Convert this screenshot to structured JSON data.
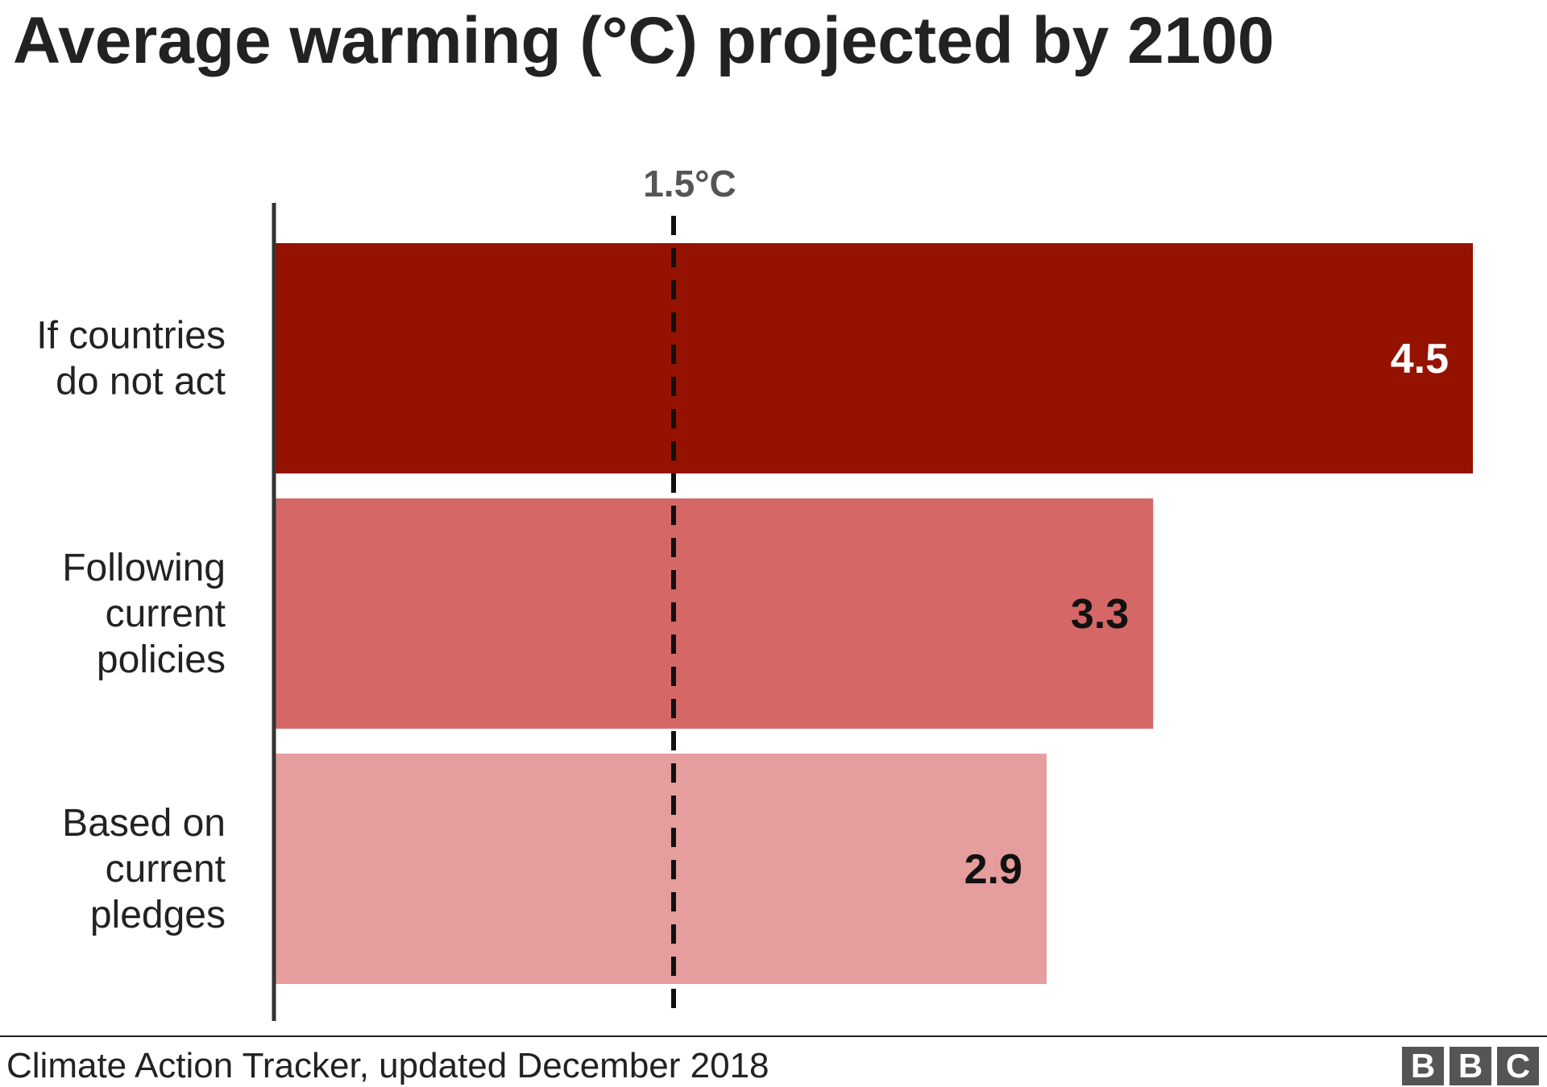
{
  "title": "Average warming (°C) projected by 2100",
  "source": "Climate Action Tracker, updated December 2018",
  "logo": [
    "B",
    "B",
    "C"
  ],
  "chart_data": {
    "type": "bar",
    "orientation": "horizontal",
    "categories": [
      [
        "If countries",
        "do not act"
      ],
      [
        "Following",
        "current",
        "policies"
      ],
      [
        "Based on",
        "current",
        "pledges"
      ]
    ],
    "values": [
      4.5,
      3.3,
      2.9
    ],
    "value_labels": [
      "4.5",
      "3.3",
      "2.9"
    ],
    "bar_colors": [
      "#961200",
      "#d56767",
      "#e69d9d"
    ],
    "label_colors": [
      "#ffffff",
      "#111111",
      "#111111"
    ],
    "reference_line": {
      "value": 1.5,
      "label": "1.5°C",
      "style": "dashed"
    },
    "xlim": [
      0,
      4.5
    ],
    "grid": false,
    "legend": "none"
  }
}
